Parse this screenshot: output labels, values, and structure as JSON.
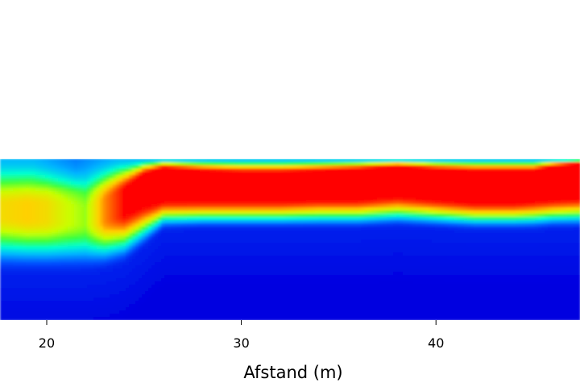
{
  "chart_data": {
    "type": "heatmap",
    "title": "",
    "xlabel": "Afstand (m)",
    "ylabel": "",
    "xlim": [
      17.6,
      47.4
    ],
    "x_ticks": [
      20,
      30,
      40
    ],
    "x_tick_labels": [
      "20",
      "30",
      "40"
    ],
    "colormap": "jet",
    "colormap_stops": [
      "#0000e0",
      "#0050ff",
      "#00b4ff",
      "#00ffd0",
      "#3cff3c",
      "#c8ff00",
      "#ffd000",
      "#ff6a00",
      "#ff0000"
    ],
    "grid": false,
    "legend": "none",
    "profile": {
      "x": [
        17.6,
        19,
        20,
        21,
        22,
        23,
        24,
        25,
        26,
        28,
        30,
        32,
        34,
        36,
        38,
        40,
        42,
        44,
        45,
        46,
        47.4
      ],
      "surface_depth": [
        0.0,
        0.0,
        0.0,
        0.0,
        0.0,
        0.0,
        0.0,
        0.0,
        0.0,
        0.0,
        0.0,
        0.0,
        0.0,
        0.0,
        0.0,
        0.0,
        0.0,
        0.0,
        0.0,
        0.0,
        0.0
      ],
      "high_layer_top": [
        0.3,
        0.3,
        0.3,
        0.31,
        0.33,
        0.27,
        0.2,
        0.1,
        0.06,
        0.08,
        0.09,
        0.09,
        0.08,
        0.07,
        0.05,
        0.07,
        0.08,
        0.08,
        0.08,
        0.05,
        0.03
      ],
      "high_layer_bottom": [
        0.36,
        0.37,
        0.38,
        0.39,
        0.4,
        0.38,
        0.34,
        0.29,
        0.26,
        0.26,
        0.26,
        0.26,
        0.25,
        0.25,
        0.23,
        0.25,
        0.27,
        0.27,
        0.26,
        0.25,
        0.24
      ],
      "peak_value": [
        0.72,
        0.75,
        0.72,
        0.64,
        0.58,
        0.84,
        1.0,
        1.0,
        1.0,
        1.0,
        1.0,
        1.0,
        1.0,
        1.0,
        1.0,
        1.0,
        1.0,
        1.0,
        1.0,
        1.0,
        1.0
      ],
      "layer_bottom": [
        0.72,
        0.72,
        0.72,
        0.72,
        0.72,
        0.7,
        0.66,
        0.56,
        0.45,
        0.44,
        0.44,
        0.44,
        0.44,
        0.44,
        0.43,
        0.44,
        0.45,
        0.45,
        0.45,
        0.44,
        0.44
      ],
      "surface_low_spot": {
        "x_center": 21.5,
        "width": 2.2,
        "value": 0.18
      }
    }
  }
}
